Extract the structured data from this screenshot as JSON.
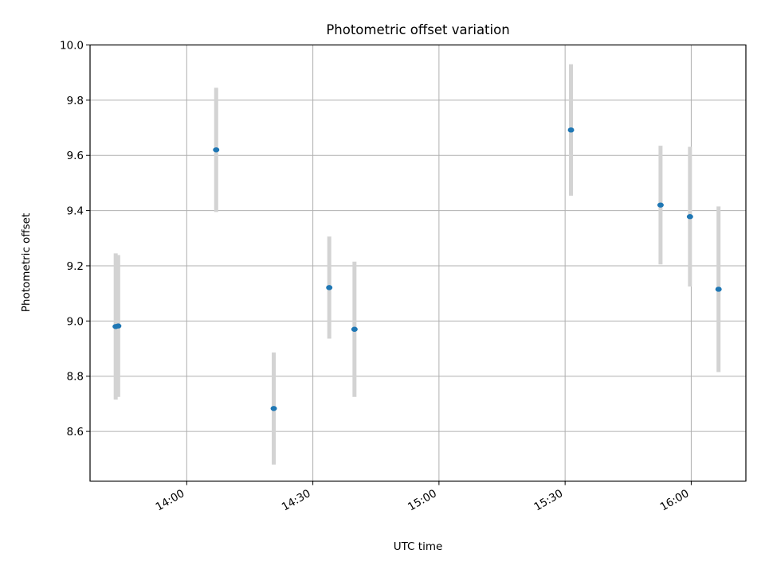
{
  "chart_data": {
    "type": "scatter",
    "title": "Photometric offset variation",
    "xlabel": "UTC time",
    "ylabel": "Photometric offset",
    "x_range": [
      "13:37",
      "16:13"
    ],
    "ylim": [
      8.42,
      10.0
    ],
    "x_ticks": [
      "14:00",
      "14:30",
      "15:00",
      "15:30",
      "16:00"
    ],
    "y_ticks": [
      "8.6",
      "8.8",
      "9.0",
      "9.2",
      "9.4",
      "9.6",
      "9.8",
      "10.0"
    ],
    "grid": true,
    "marker_color": "#1f77b4",
    "errorbar_color": "#d3d3d3",
    "points": [
      {
        "time": "13:43:06",
        "value": 8.98,
        "error": 0.265
      },
      {
        "time": "13:43:42",
        "value": 8.982,
        "error": 0.257
      },
      {
        "time": "14:07:00",
        "value": 9.62,
        "error": 0.225
      },
      {
        "time": "14:20:42",
        "value": 8.683,
        "error": 0.203
      },
      {
        "time": "14:33:54",
        "value": 9.121,
        "error": 0.185
      },
      {
        "time": "14:39:54",
        "value": 8.97,
        "error": 0.245
      },
      {
        "time": "15:31:24",
        "value": 9.692,
        "error": 0.238
      },
      {
        "time": "15:52:42",
        "value": 9.42,
        "error": 0.215
      },
      {
        "time": "15:59:42",
        "value": 9.378,
        "error": 0.253
      },
      {
        "time": "16:06:30",
        "value": 9.115,
        "error": 0.3
      }
    ]
  }
}
